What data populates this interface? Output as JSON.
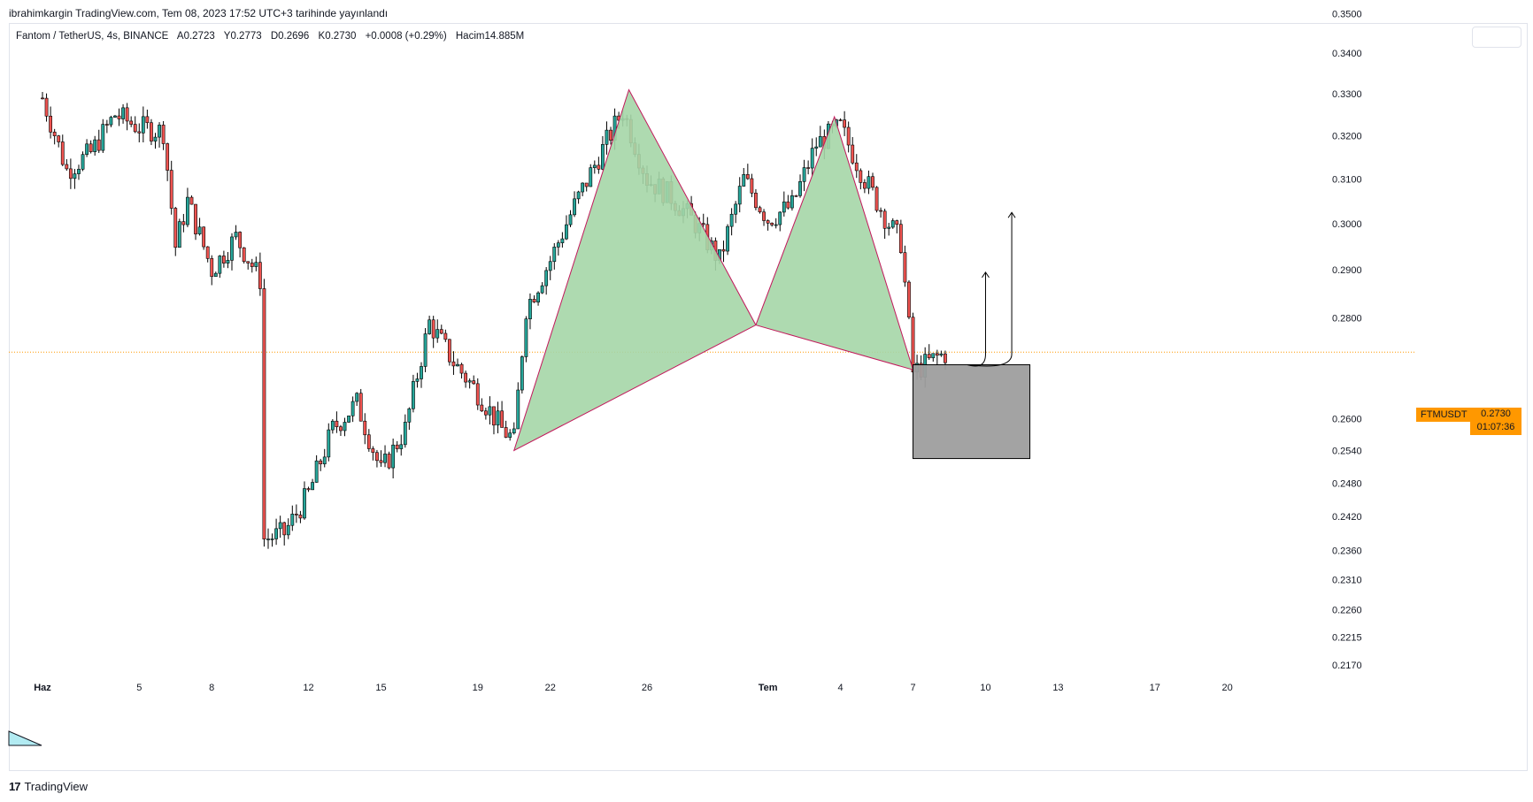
{
  "header": {
    "published": "ibrahimkargin TradingView.com, Tem 08, 2023 17:52 UTC+3 tarihinde yayınlandı"
  },
  "legend": {
    "symbol": "Fantom / TetherUS, 4s, BINANCE",
    "open": "A0.2723",
    "high": "Y0.2773",
    "low": "D0.2696",
    "close": "K0.2730",
    "change": "+0.0008 (+0.29%)",
    "volume": "Hacim14.885M"
  },
  "badge": {
    "symbol": "FTMUSDT",
    "price": "0.2730",
    "countdown": "01:07:36"
  },
  "footer": {
    "brand": "TradingView"
  },
  "colors": {
    "up": "#26a69a",
    "down": "#ef5350",
    "candle": "#000000",
    "pattern_fill": "#a5d6a7",
    "pattern_stroke": "#c2185b",
    "box_fill": "#9e9e9e",
    "badge": "#ff9800",
    "price_line": "#ff9800"
  },
  "chart_data": {
    "type": "candlestick",
    "y_scale": "log",
    "y_ticks": [
      "0.3500",
      "0.3400",
      "0.3300",
      "0.3200",
      "0.3100",
      "0.3000",
      "0.2900",
      "0.2800",
      "0.2600",
      "0.2540",
      "0.2480",
      "0.2420",
      "0.2360",
      "0.2310",
      "0.2260",
      "0.2215",
      "0.2170"
    ],
    "x_ticks": [
      {
        "label": "Haz",
        "date": "2023-06-01",
        "bold": true
      },
      {
        "label": "5",
        "date": "2023-06-05"
      },
      {
        "label": "8",
        "date": "2023-06-08"
      },
      {
        "label": "12",
        "date": "2023-06-12"
      },
      {
        "label": "15",
        "date": "2023-06-15"
      },
      {
        "label": "19",
        "date": "2023-06-19"
      },
      {
        "label": "22",
        "date": "2023-06-22"
      },
      {
        "label": "26",
        "date": "2023-06-26"
      },
      {
        "label": "Tem",
        "date": "2023-07-01",
        "bold": true
      },
      {
        "label": "4",
        "date": "2023-07-04"
      },
      {
        "label": "7",
        "date": "2023-07-07"
      },
      {
        "label": "10",
        "date": "2023-07-10"
      },
      {
        "label": "13",
        "date": "2023-07-13"
      },
      {
        "label": "17",
        "date": "2023-07-17"
      },
      {
        "label": "20",
        "date": "2023-07-20"
      }
    ],
    "last_price": 0.273,
    "price_path": [
      [
        "2023-06-01",
        0.329
      ],
      [
        "2023-06-02",
        0.312
      ],
      [
        "2023-06-03",
        0.316
      ],
      [
        "2023-06-04",
        0.325
      ],
      [
        "2023-06-05",
        0.322
      ],
      [
        "2023-06-06",
        0.321
      ],
      [
        "2023-06-06T12",
        0.295
      ],
      [
        "2023-06-07",
        0.305
      ],
      [
        "2023-06-08",
        0.29
      ],
      [
        "2023-06-09",
        0.297
      ],
      [
        "2023-06-10",
        0.288
      ],
      [
        "2023-06-10T04",
        0.238
      ],
      [
        "2023-06-11",
        0.239
      ],
      [
        "2023-06-12",
        0.246
      ],
      [
        "2023-06-13",
        0.258
      ],
      [
        "2023-06-14",
        0.263
      ],
      [
        "2023-06-15",
        0.25
      ],
      [
        "2023-06-16",
        0.258
      ],
      [
        "2023-06-17",
        0.279
      ],
      [
        "2023-06-18",
        0.271
      ],
      [
        "2023-06-19",
        0.265
      ],
      [
        "2023-06-20",
        0.258
      ],
      [
        "2023-06-20T12",
        0.256
      ],
      [
        "2023-06-21",
        0.282
      ],
      [
        "2023-06-22",
        0.292
      ],
      [
        "2023-06-23",
        0.304
      ],
      [
        "2023-06-24",
        0.315
      ],
      [
        "2023-06-25",
        0.326
      ],
      [
        "2023-06-26",
        0.31
      ],
      [
        "2023-06-27",
        0.306
      ],
      [
        "2023-06-28",
        0.3
      ],
      [
        "2023-06-29",
        0.292
      ],
      [
        "2023-06-30",
        0.31
      ],
      [
        "2023-07-01",
        0.301
      ],
      [
        "2023-07-02",
        0.304
      ],
      [
        "2023-07-03",
        0.318
      ],
      [
        "2023-07-04",
        0.322
      ],
      [
        "2023-07-05",
        0.31
      ],
      [
        "2023-07-06",
        0.3
      ],
      [
        "2023-07-06T12",
        0.296
      ],
      [
        "2023-07-07",
        0.269
      ],
      [
        "2023-07-08",
        0.272
      ],
      [
        "2023-07-08T12",
        0.273
      ]
    ],
    "pattern_points": [
      [
        "2023-06-20T12",
        0.254
      ],
      [
        "2023-06-25T06",
        0.331
      ],
      [
        "2023-06-30T12",
        0.2785
      ],
      [
        "2023-07-03T18",
        0.3245
      ],
      [
        "2023-07-07",
        0.2695
      ]
    ],
    "zone": {
      "from": "2023-07-07",
      "to": "2023-07-11T20",
      "top": 0.2705,
      "bottom": 0.2525
    },
    "arrows": [
      {
        "start": [
          "2023-07-09T06",
          0.2705
        ],
        "top": [
          "2023-07-10",
          0.2895
        ]
      },
      {
        "start": [
          "2023-07-09T06",
          0.2705
        ],
        "top": [
          "2023-07-11T02",
          0.3025
        ]
      }
    ]
  }
}
